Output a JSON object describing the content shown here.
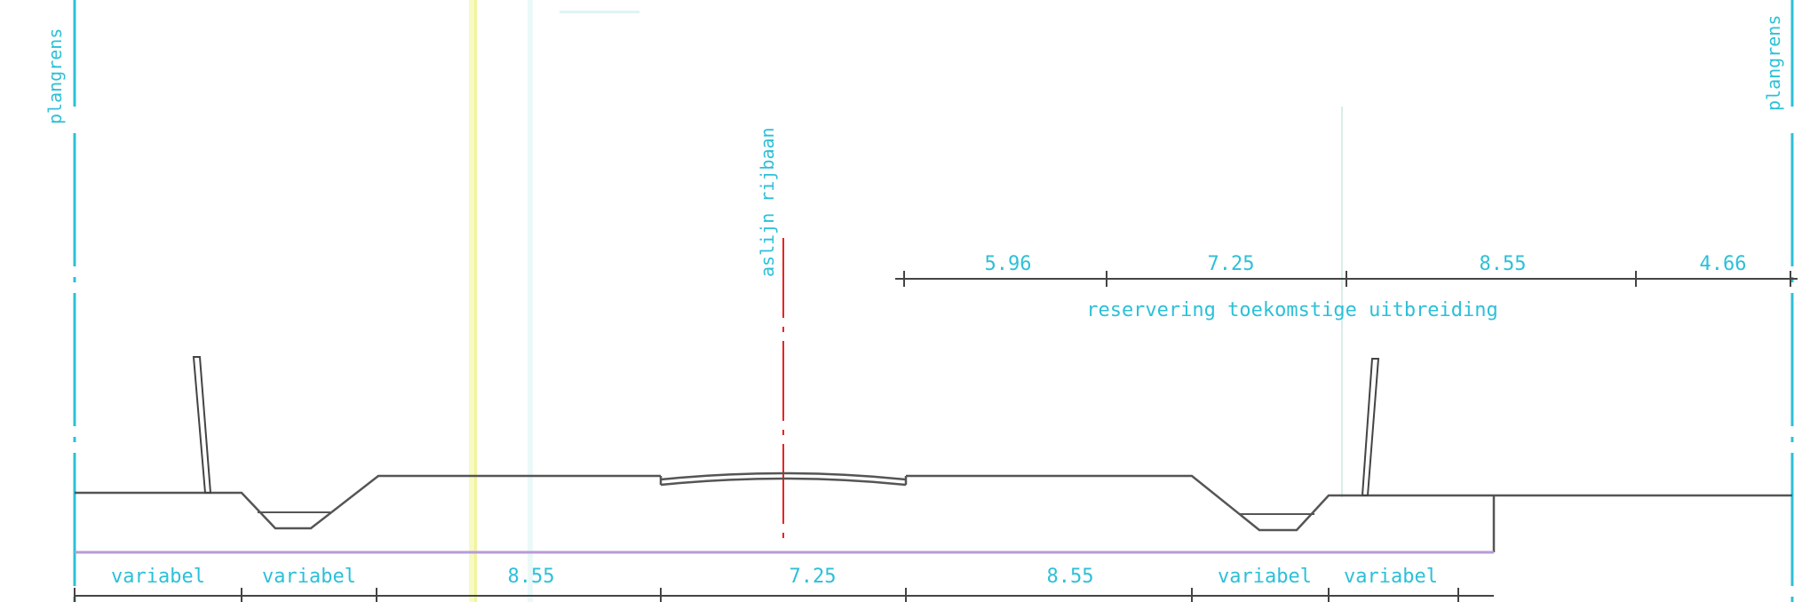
{
  "labels": {
    "boundary_left": "plangrens",
    "boundary_right": "plangrens",
    "centerline": "aslijn rijbaan",
    "reservation_note": "reservering toekomstige uitbreiding"
  },
  "upper_dimensions": [
    "5.96",
    "7.25",
    "8.55",
    "4.66"
  ],
  "lower_dimensions": [
    "variabel",
    "variabel",
    "8.55",
    "7.25",
    "8.55",
    "variabel",
    "variabel"
  ],
  "colors": {
    "annotation": "#2cc0d8",
    "profile": "#555555",
    "centerline": "#ee2222",
    "base": "#b89ad8"
  }
}
